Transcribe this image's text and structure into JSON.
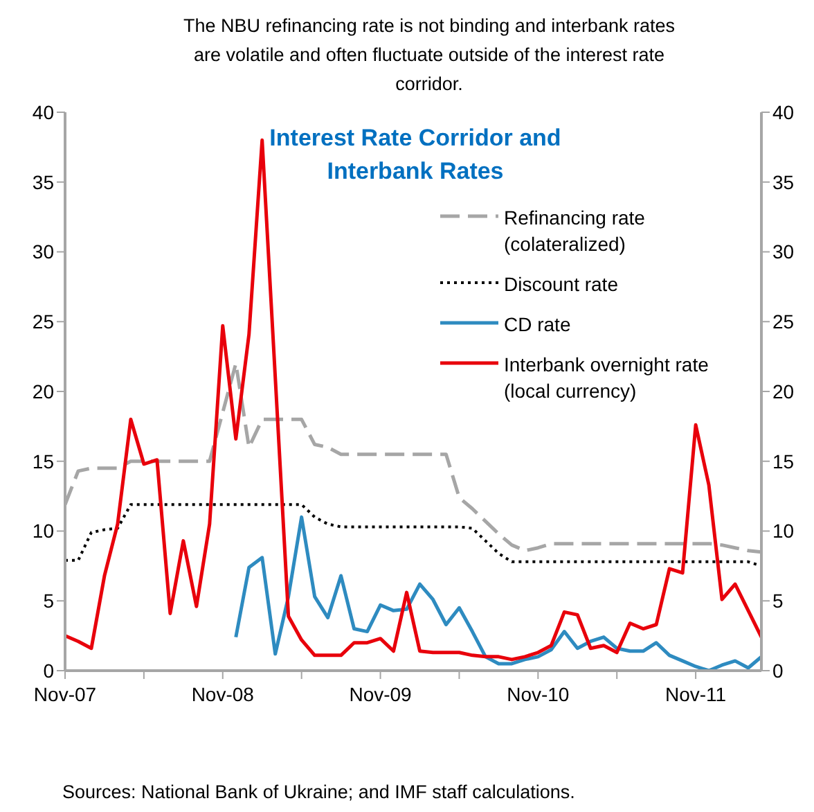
{
  "chart_data": {
    "type": "line",
    "title": "Interest Rate Corridor and Interbank Rates",
    "subtitle": "The NBU refinancing rate is not binding and interbank rates are volatile and often fluctuate outside of the interest rate corridor.",
    "annotations": [
      "Sources: National Bank of Ukraine; and IMF staff calculations."
    ],
    "x": [
      "2007-11",
      "2007-12",
      "2008-01",
      "2008-02",
      "2008-03",
      "2008-04",
      "2008-05",
      "2008-06",
      "2008-07",
      "2008-08",
      "2008-09",
      "2008-10",
      "2008-11",
      "2008-12",
      "2009-01",
      "2009-02",
      "2009-03",
      "2009-04",
      "2009-05",
      "2009-06",
      "2009-07",
      "2009-08",
      "2009-09",
      "2009-10",
      "2009-11",
      "2009-12",
      "2010-01",
      "2010-02",
      "2010-03",
      "2010-04",
      "2010-05",
      "2010-06",
      "2010-07",
      "2010-08",
      "2010-09",
      "2010-10",
      "2010-11",
      "2010-12",
      "2011-01",
      "2011-02",
      "2011-03",
      "2011-04",
      "2011-05",
      "2011-06",
      "2011-07",
      "2011-08",
      "2011-09",
      "2011-10",
      "2011-11",
      "2011-12",
      "2012-01",
      "2012-02",
      "2012-03",
      "2012-04"
    ],
    "series": [
      {
        "name": "Refinancing rate (colateralized)",
        "color": "#a6a6a6",
        "line_style": "dashed",
        "values": [
          11.9,
          14.3,
          14.5,
          14.5,
          14.5,
          15,
          15,
          15,
          15,
          15,
          15,
          15,
          18.5,
          22,
          16,
          18,
          18,
          18,
          18,
          16.2,
          16,
          15.5,
          15.5,
          15.5,
          15.5,
          15.5,
          15.5,
          15.5,
          15.5,
          15.5,
          12.4,
          11.6,
          10.7,
          9.8,
          9,
          8.6,
          8.8,
          9.1,
          9.1,
          9.1,
          9.1,
          9.1,
          9.1,
          9.1,
          9.1,
          9.1,
          9.1,
          9.1,
          9.1,
          9.1,
          9,
          8.8,
          8.6,
          8.5
        ]
      },
      {
        "name": "Discount rate",
        "color": "#000000",
        "line_style": "dotted",
        "values": [
          7.9,
          7.9,
          9.9,
          10.1,
          10.2,
          11.9,
          11.9,
          11.9,
          11.9,
          11.9,
          11.9,
          11.9,
          11.9,
          11.9,
          11.9,
          11.9,
          11.9,
          11.9,
          11.9,
          11,
          10.5,
          10.3,
          10.3,
          10.3,
          10.3,
          10.3,
          10.3,
          10.3,
          10.3,
          10.3,
          10.3,
          10.2,
          9.3,
          8.4,
          7.8,
          7.8,
          7.8,
          7.8,
          7.8,
          7.8,
          7.8,
          7.8,
          7.8,
          7.8,
          7.8,
          7.8,
          7.8,
          7.8,
          7.8,
          7.8,
          7.8,
          7.8,
          7.8,
          7.5
        ]
      },
      {
        "name": "CD rate",
        "color": "#2e8bc0",
        "line_style": "solid",
        "values": [
          null,
          null,
          null,
          null,
          null,
          null,
          null,
          null,
          null,
          null,
          null,
          null,
          null,
          2.4,
          7.4,
          8.1,
          1.2,
          5.3,
          11,
          5.3,
          3.8,
          6.8,
          3,
          2.8,
          4.7,
          4.3,
          4.4,
          6.2,
          5.1,
          3.3,
          4.5,
          2.8,
          1,
          0.5,
          0.5,
          0.8,
          1,
          1.5,
          2.8,
          1.6,
          2.1,
          2.4,
          1.6,
          1.4,
          1.4,
          2,
          1.1,
          0.7,
          0.3,
          0,
          0.4,
          0.7,
          0.2,
          1
        ]
      },
      {
        "name": "Interbank overnight rate (local currency)",
        "color": "#e8000b",
        "line_style": "solid",
        "values": [
          2.5,
          2.1,
          1.6,
          6.8,
          10.5,
          18,
          14.8,
          15.1,
          4.1,
          9.3,
          4.6,
          10.5,
          24.7,
          16.6,
          24.1,
          38,
          21,
          3.9,
          2.2,
          1.1,
          1.1,
          1.1,
          2,
          2,
          2.3,
          1.4,
          5.6,
          1.4,
          1.3,
          1.3,
          1.3,
          1.1,
          1,
          1,
          0.8,
          1,
          1.3,
          1.8,
          4.2,
          4,
          1.6,
          1.8,
          1.3,
          3.4,
          3,
          3.3,
          7.3,
          7,
          17.6,
          13.3,
          5.1,
          6.2,
          4.3,
          2.4
        ]
      }
    ],
    "xlim": [
      "2007-11",
      "2012-04"
    ],
    "xticks": [
      {
        "value": "2007-11",
        "label": "Nov-07"
      },
      {
        "value": "2008-05",
        "label": null
      },
      {
        "value": "2008-11",
        "label": "Nov-08"
      },
      {
        "value": "2009-05",
        "label": null
      },
      {
        "value": "2009-11",
        "label": "Nov-09"
      },
      {
        "value": "2010-05",
        "label": null
      },
      {
        "value": "2010-11",
        "label": "Nov-10"
      },
      {
        "value": "2011-05",
        "label": null
      },
      {
        "value": "2011-11",
        "label": "Nov-11"
      }
    ],
    "ylim": [
      0,
      40
    ],
    "yticks": [
      0,
      5,
      10,
      15,
      20,
      25,
      30,
      35,
      40
    ],
    "y2lim": [
      0,
      40
    ],
    "y2ticks": [
      0,
      5,
      10,
      15,
      20,
      25,
      30,
      35,
      40
    ],
    "grid": false,
    "legend": "top right",
    "marker": "none"
  }
}
